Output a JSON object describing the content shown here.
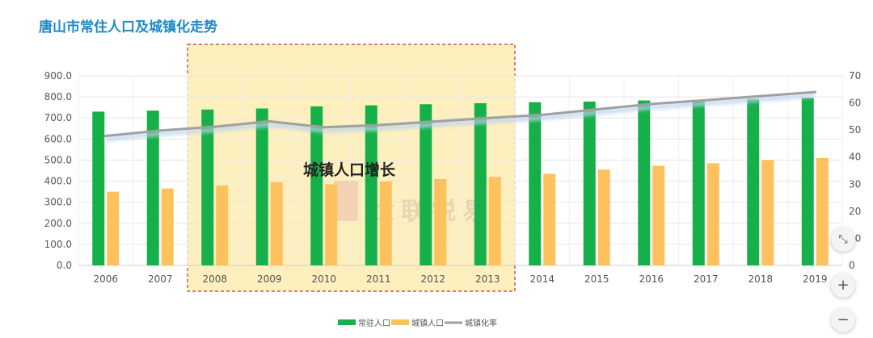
{
  "title": "唐山市常住人口及城镇化走势",
  "highlight_label": "城镇人口增长",
  "watermark": "世联锐易",
  "controls": {
    "fit": "⤡",
    "zoom_in": "+",
    "zoom_out": "−"
  },
  "colors": {
    "permanent": "#16b04a",
    "urban": "#fdc15e",
    "rate": "#a0a0a0",
    "rate_shadow": "#bcd4ee",
    "highlight_fill": "#fdf0be",
    "highlight_border": "#c83232",
    "grid": "#e6e6e6",
    "axis_text": "#555555"
  },
  "chart_data": {
    "type": "bar",
    "categories": [
      "2006",
      "2007",
      "2008",
      "2009",
      "2010",
      "2011",
      "2012",
      "2013",
      "2014",
      "2015",
      "2016",
      "2017",
      "2018",
      "2019"
    ],
    "series": [
      {
        "name": "常驻人口",
        "type": "bar",
        "axis": "left",
        "values": [
          730,
          735,
          740,
          745,
          755,
          760,
          765,
          770,
          775,
          778,
          783,
          786,
          790,
          795
        ]
      },
      {
        "name": "城镇人口",
        "type": "bar",
        "axis": "left",
        "values": [
          350,
          365,
          380,
          395,
          385,
          398,
          410,
          420,
          435,
          455,
          473,
          485,
          500,
          510
        ]
      },
      {
        "name": "城镇化率",
        "type": "line",
        "axis": "right",
        "values": [
          47.8,
          49.8,
          51.2,
          53.2,
          51.0,
          51.8,
          53.1,
          54.4,
          55.6,
          57.6,
          59.6,
          61.0,
          62.5,
          64.0
        ]
      }
    ],
    "ylim_left": [
      0,
      900
    ],
    "yticks_left": [
      "0.0",
      "100.0",
      "200.0",
      "300.0",
      "400.0",
      "500.0",
      "600.0",
      "700.0",
      "800.0",
      "900.0"
    ],
    "ylim_right": [
      0,
      70
    ],
    "yticks_right": [
      "0",
      "10",
      "20",
      "30",
      "40",
      "50",
      "60",
      "70"
    ],
    "highlight_range": [
      "2008",
      "2013"
    ],
    "grid": true,
    "legend_position": "bottom-center"
  }
}
